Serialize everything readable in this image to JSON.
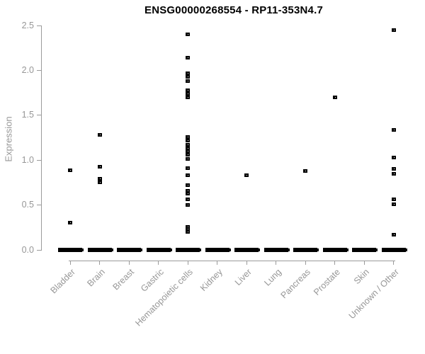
{
  "chart_data": {
    "type": "scatter",
    "title": "ENSG00000268554 - RP11-353N4.7",
    "ylabel": "Expression",
    "ylim": [
      0,
      2.5
    ],
    "ytick_values": [
      0,
      0.5,
      1.0,
      1.5,
      2.0,
      2.5
    ],
    "ytick_labels": [
      "0.0",
      "0.5",
      "1.0",
      "1.5",
      "2.0",
      "2.5"
    ],
    "grid": "off",
    "legend": "none",
    "point_style": "small-open-black-square",
    "colors": {
      "points": "#000000",
      "axis": "#9b9b9b",
      "axis_text": "#979797",
      "title": "#000000",
      "background": "#ffffff"
    },
    "categories": [
      {
        "label": "Bladder",
        "values": [
          0.89,
          0.3
        ],
        "zero_cluster": true
      },
      {
        "label": "Brain",
        "values": [
          1.28,
          0.93,
          0.79,
          0.75
        ],
        "zero_cluster": true
      },
      {
        "label": "Breast",
        "values": [],
        "zero_cluster": true
      },
      {
        "label": "Gastric",
        "values": [],
        "zero_cluster": true
      },
      {
        "label": "Hematopoietic cells",
        "values": [
          2.4,
          2.14,
          1.97,
          1.93,
          1.88,
          1.78,
          1.74,
          1.7,
          1.26,
          1.22,
          1.17,
          1.13,
          1.1,
          1.06,
          1.01,
          0.91,
          0.83,
          0.72,
          0.66,
          0.63,
          0.56,
          0.5,
          0.26,
          0.23,
          0.2
        ],
        "zero_cluster": true
      },
      {
        "label": "Kidney",
        "values": [],
        "zero_cluster": true
      },
      {
        "label": "Liver",
        "values": [
          0.83
        ],
        "zero_cluster": true
      },
      {
        "label": "Lung",
        "values": [],
        "zero_cluster": true
      },
      {
        "label": "Pancreas",
        "values": [
          0.88
        ],
        "zero_cluster": true
      },
      {
        "label": "Prostate",
        "values": [
          1.7
        ],
        "zero_cluster": true
      },
      {
        "label": "Skin",
        "values": [],
        "zero_cluster": true
      },
      {
        "label": "Unknown / Other",
        "values": [
          2.45,
          1.34,
          1.03,
          0.9,
          0.85,
          0.56,
          0.51,
          0.17
        ],
        "zero_cluster": true
      }
    ]
  }
}
